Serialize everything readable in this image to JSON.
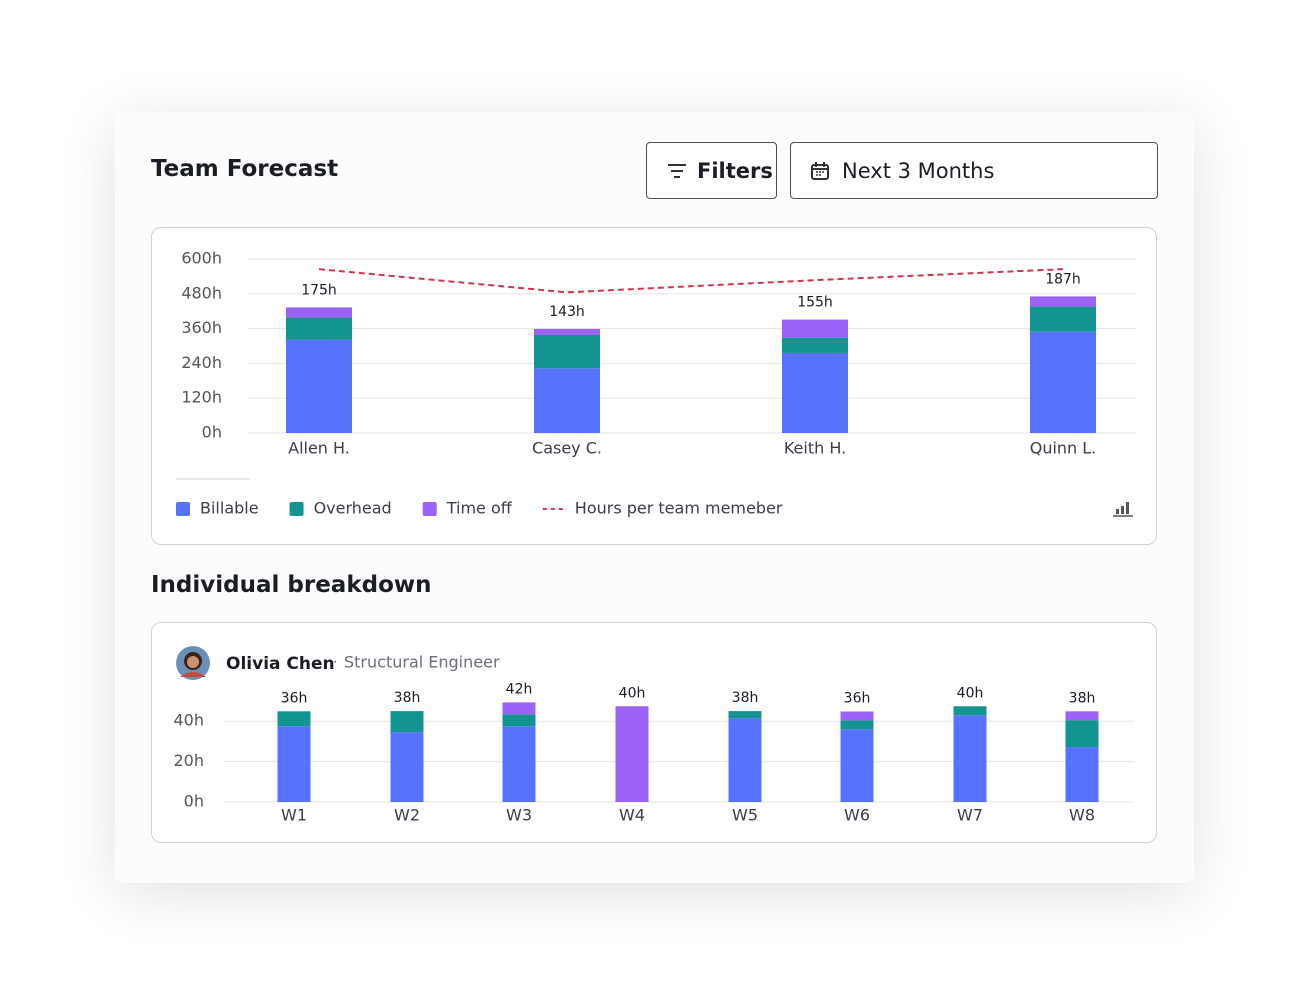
{
  "header": {
    "title": "Team Forecast",
    "filters": "Filters",
    "range": "Next 3 Months"
  },
  "chart_data": [
    {
      "type": "bar",
      "stacked": true,
      "categories": [
        "Allen H.",
        "Casey C.",
        "Keith H.",
        "Quinn L."
      ],
      "series": [
        {
          "name": "Billable",
          "color": "#5672ff",
          "values": [
            321,
            223,
            276,
            349
          ]
        },
        {
          "name": "Overhead",
          "color": "#149490",
          "values": [
            77,
            115,
            52,
            87
          ]
        },
        {
          "name": "Time off",
          "color": "#9b63f5",
          "values": [
            35,
            21,
            63,
            35
          ]
        },
        {
          "name": "Hours per team memeber",
          "type": "line",
          "dashed": true,
          "color": "#d0344f",
          "values": [
            565,
            485,
            527,
            565
          ]
        }
      ],
      "annotations": [
        "175h",
        "143h",
        "155h",
        "187h"
      ],
      "ylim": [
        0,
        600
      ],
      "yticks": [
        {
          "value": 0,
          "label": "0h"
        },
        {
          "value": 120,
          "label": "120h"
        },
        {
          "value": 240,
          "label": "240h"
        },
        {
          "value": 360,
          "label": "360h"
        },
        {
          "value": 480,
          "label": "480h"
        },
        {
          "value": 600,
          "label": "600h"
        }
      ],
      "grid": true,
      "legend": "bottom-left"
    },
    {
      "type": "bar",
      "stacked": true,
      "title": "Individual breakdown",
      "person": "Olivia Chen",
      "role": "Structural Engineer",
      "categories": [
        "W1",
        "W2",
        "W3",
        "W4",
        "W5",
        "W6",
        "W7",
        "W8"
      ],
      "series": [
        {
          "name": "Billable",
          "color": "#5672ff",
          "values": [
            37.5,
            34.6,
            37.5,
            0,
            41.5,
            36,
            43,
            27.2
          ]
        },
        {
          "name": "Overhead",
          "color": "#149490",
          "values": [
            7.4,
            10.4,
            5.9,
            0,
            3.5,
            4.4,
            4.4,
            13.3
          ]
        },
        {
          "name": "Time off",
          "color": "#9b63f5",
          "values": [
            0,
            0,
            5.9,
            47.4,
            0,
            4.4,
            0,
            4.4
          ]
        }
      ],
      "annotations": [
        "36h",
        "38h",
        "42h",
        "40h",
        "38h",
        "36h",
        "40h",
        "38h"
      ],
      "ylim": [
        0,
        50
      ],
      "yticks": [
        {
          "value": 0,
          "label": "0h"
        },
        {
          "value": 20,
          "label": "20h"
        },
        {
          "value": 40,
          "label": "40h"
        }
      ],
      "grid": true
    }
  ]
}
